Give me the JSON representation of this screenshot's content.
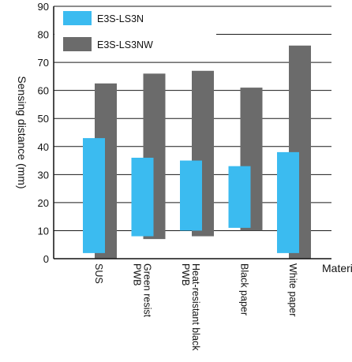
{
  "chart_data": {
    "type": "bar",
    "ylabel": "Sensing distance (mm)",
    "xlabel": "Material",
    "ylim": [
      0,
      90
    ],
    "yticks": [
      0,
      10,
      20,
      30,
      40,
      50,
      60,
      70,
      80,
      90
    ],
    "grid": true,
    "legend_position": "top-left",
    "categories": [
      "SUS",
      "Green resist PWB",
      "Heat-resistant black PWB",
      "Black paper",
      "White paper"
    ],
    "series": [
      {
        "name": "E3S-LS3N",
        "color": "#3bbbf0",
        "ranges": [
          [
            2,
            43
          ],
          [
            8,
            36
          ],
          [
            10,
            35
          ],
          [
            11,
            33
          ],
          [
            2,
            38
          ]
        ]
      },
      {
        "name": "E3S-LS3NW",
        "color": "#6b6b6b",
        "ranges": [
          [
            0,
            62.5
          ],
          [
            7,
            66
          ],
          [
            8,
            67
          ],
          [
            10,
            61
          ],
          [
            0,
            76
          ]
        ]
      }
    ]
  }
}
